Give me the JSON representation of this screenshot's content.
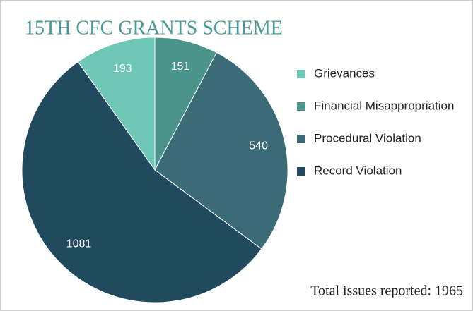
{
  "chart_data": {
    "type": "pie",
    "title": "15TH CFC GRANTS SCHEME",
    "categories": [
      "Grievances",
      "Financial Misappropriation",
      "Procedural Violation",
      "Record Violation"
    ],
    "values": [
      193,
      151,
      540,
      1081
    ],
    "colors": [
      "#6fc7b5",
      "#4a948c",
      "#3a6b77",
      "#224a5f"
    ],
    "legend": "right",
    "annotation": "Total issues reported: 1965"
  }
}
